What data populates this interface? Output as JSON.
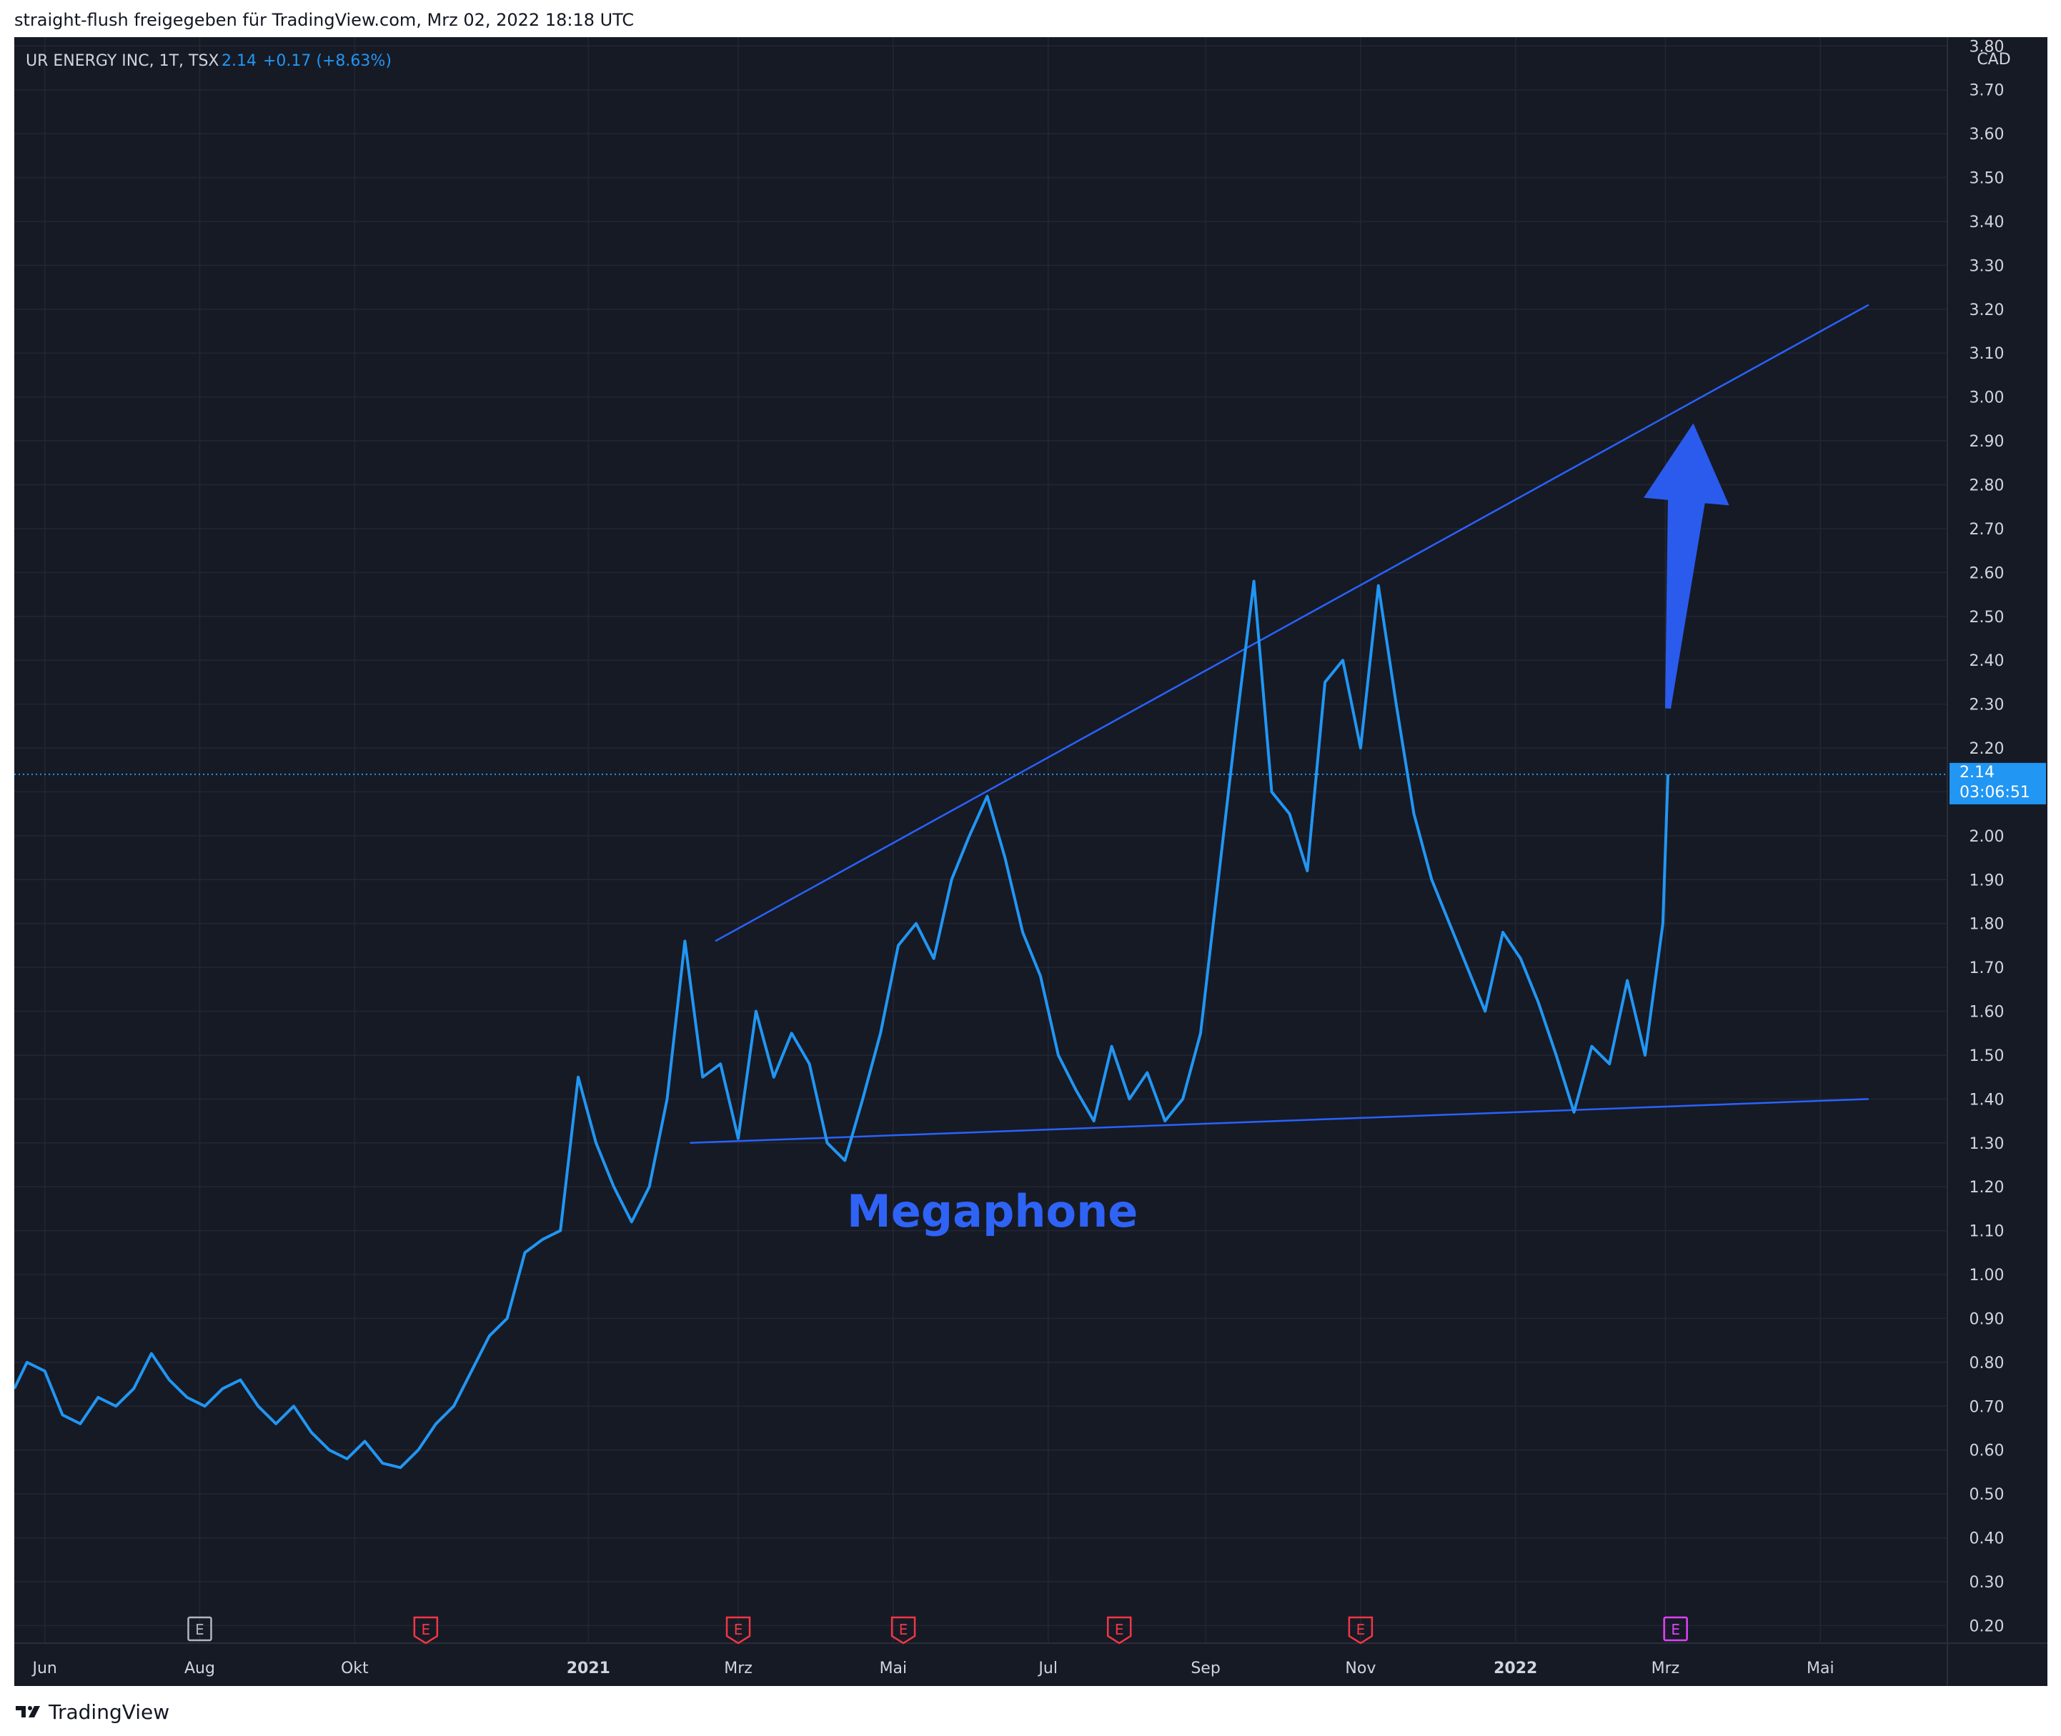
{
  "header": {
    "caption": "straight-flush freigegeben für TradingView.com, Mrz 02, 2022 18:18 UTC"
  },
  "legend": {
    "symbol": "UR ENERGY INC, 1T, TSX",
    "price": "2.14",
    "change": "+0.17 (+8.63%)"
  },
  "currency": "CAD",
  "price_label": {
    "price": "2.14",
    "countdown": "03:06:51"
  },
  "annotation": "Megaphone",
  "footer": {
    "brand": "TradingView"
  },
  "colors": {
    "background": "#161a25",
    "grid": "#232733",
    "line": "#2196f3",
    "trendline": "#2962ff",
    "arrow": "#2a5bec",
    "text": "#d1d4dc",
    "earnings_past": "#f23645",
    "earnings_first": "#b2b5be",
    "earnings_future": "#e040fb"
  },
  "chart_data": {
    "type": "line",
    "title": "UR ENERGY INC, 1T, TSX",
    "ylabel": "",
    "xlabel": "",
    "ylim": [
      0.16,
      3.82
    ],
    "xlim": [
      "2020-05-20",
      "2022-06-20"
    ],
    "y_ticks": [
      "3.80",
      "3.70",
      "3.60",
      "3.50",
      "3.40",
      "3.30",
      "3.20",
      "3.10",
      "3.00",
      "2.90",
      "2.80",
      "2.70",
      "2.60",
      "2.50",
      "2.40",
      "2.30",
      "2.20",
      "2.10",
      "2.00",
      "1.90",
      "1.80",
      "1.70",
      "1.60",
      "1.50",
      "1.40",
      "1.30",
      "1.20",
      "1.10",
      "1.00",
      "0.90",
      "0.80",
      "0.70",
      "0.60",
      "0.50",
      "0.40",
      "0.30",
      "0.20"
    ],
    "x_ticks": [
      {
        "label": "Jun",
        "date": "2020-06-01"
      },
      {
        "label": "Aug",
        "date": "2020-08-01"
      },
      {
        "label": "Okt",
        "date": "2020-10-01"
      },
      {
        "label": "2021",
        "date": "2021-01-01"
      },
      {
        "label": "Mrz",
        "date": "2021-03-01"
      },
      {
        "label": "Mai",
        "date": "2021-05-01"
      },
      {
        "label": "Jul",
        "date": "2021-07-01"
      },
      {
        "label": "Sep",
        "date": "2021-09-01"
      },
      {
        "label": "Nov",
        "date": "2021-11-01"
      },
      {
        "label": "2022",
        "date": "2022-01-01"
      },
      {
        "label": "Mrz",
        "date": "2022-03-01"
      },
      {
        "label": "Mai",
        "date": "2022-05-01"
      }
    ],
    "grid": true,
    "last_price": 2.14,
    "series": [
      {
        "values_note": "",
        "x": [
          "2020-05-20",
          "2020-05-25",
          "2020-06-01",
          "2020-06-08",
          "2020-06-15",
          "2020-06-22",
          "2020-06-29",
          "2020-07-06",
          "2020-07-13",
          "2020-07-20",
          "2020-07-27",
          "2020-08-03",
          "2020-08-10",
          "2020-08-17",
          "2020-08-24",
          "2020-08-31",
          "2020-09-07",
          "2020-09-14",
          "2020-09-21",
          "2020-09-28",
          "2020-10-05",
          "2020-10-12",
          "2020-10-19",
          "2020-10-26",
          "2020-11-02",
          "2020-11-09",
          "2020-11-16",
          "2020-11-23",
          "2020-11-30",
          "2020-12-07",
          "2020-12-14",
          "2020-12-21",
          "2020-12-28",
          "2021-01-04",
          "2021-01-11",
          "2021-01-18",
          "2021-01-25",
          "2021-02-01",
          "2021-02-08",
          "2021-02-15",
          "2021-02-22",
          "2021-03-01",
          "2021-03-08",
          "2021-03-15",
          "2021-03-22",
          "2021-03-29",
          "2021-04-05",
          "2021-04-12",
          "2021-04-19",
          "2021-04-26",
          "2021-05-03",
          "2021-05-10",
          "2021-05-17",
          "2021-05-24",
          "2021-05-31",
          "2021-06-07",
          "2021-06-14",
          "2021-06-21",
          "2021-06-28",
          "2021-07-05",
          "2021-07-12",
          "2021-07-19",
          "2021-07-26",
          "2021-08-02",
          "2021-08-09",
          "2021-08-16",
          "2021-08-23",
          "2021-08-30",
          "2021-09-06",
          "2021-09-13",
          "2021-09-20",
          "2021-09-27",
          "2021-10-04",
          "2021-10-11",
          "2021-10-18",
          "2021-10-25",
          "2021-11-01",
          "2021-11-08",
          "2021-11-15",
          "2021-11-22",
          "2021-11-29",
          "2021-12-06",
          "2021-12-13",
          "2021-12-20",
          "2021-12-27",
          "2022-01-03",
          "2022-01-10",
          "2022-01-17",
          "2022-01-24",
          "2022-01-31",
          "2022-02-07",
          "2022-02-14",
          "2022-02-21",
          "2022-02-28",
          "2022-03-02"
        ],
        "values": [
          0.74,
          0.8,
          0.78,
          0.68,
          0.66,
          0.72,
          0.7,
          0.74,
          0.82,
          0.76,
          0.72,
          0.7,
          0.74,
          0.76,
          0.7,
          0.66,
          0.7,
          0.64,
          0.6,
          0.58,
          0.62,
          0.57,
          0.56,
          0.6,
          0.66,
          0.7,
          0.78,
          0.86,
          0.9,
          1.05,
          1.08,
          1.1,
          1.45,
          1.3,
          1.2,
          1.12,
          1.2,
          1.4,
          1.76,
          1.45,
          1.48,
          1.31,
          1.6,
          1.45,
          1.55,
          1.48,
          1.3,
          1.26,
          1.4,
          1.55,
          1.75,
          1.8,
          1.72,
          1.9,
          2.0,
          2.09,
          1.95,
          1.78,
          1.68,
          1.5,
          1.42,
          1.35,
          1.52,
          1.4,
          1.46,
          1.35,
          1.4,
          1.55,
          1.9,
          2.25,
          2.58,
          2.1,
          2.05,
          1.92,
          2.35,
          2.4,
          2.2,
          2.57,
          2.3,
          2.05,
          1.9,
          1.8,
          1.7,
          1.6,
          1.78,
          1.72,
          1.62,
          1.5,
          1.37,
          1.52,
          1.48,
          1.67,
          1.5,
          1.8,
          2.14
        ]
      }
    ],
    "trendlines": [
      {
        "name": "",
        "from": {
          "date": "2021-02-20",
          "price": 1.76
        },
        "to": {
          "date": "2022-05-20",
          "price": 3.21
        }
      },
      {
        "name": "",
        "from": {
          "date": "2021-02-10",
          "price": 1.3
        },
        "to": {
          "date": "2022-05-20",
          "price": 1.4
        }
      }
    ],
    "arrow": {
      "from": {
        "date": "2022-03-02",
        "price": 2.29
      },
      "to": {
        "date": "2022-03-12",
        "price": 2.94
      }
    },
    "earnings_markers": [
      {
        "date": "2020-08-01",
        "label": "E",
        "status": "first"
      },
      {
        "date": "2020-10-29",
        "label": "E",
        "status": "past"
      },
      {
        "date": "2021-03-01",
        "label": "E",
        "status": "past"
      },
      {
        "date": "2021-05-05",
        "label": "E",
        "status": "past"
      },
      {
        "date": "2021-07-29",
        "label": "E",
        "status": "past"
      },
      {
        "date": "2021-11-01",
        "label": "E",
        "status": "past"
      },
      {
        "date": "2022-03-05",
        "label": "E",
        "status": "future"
      }
    ]
  }
}
